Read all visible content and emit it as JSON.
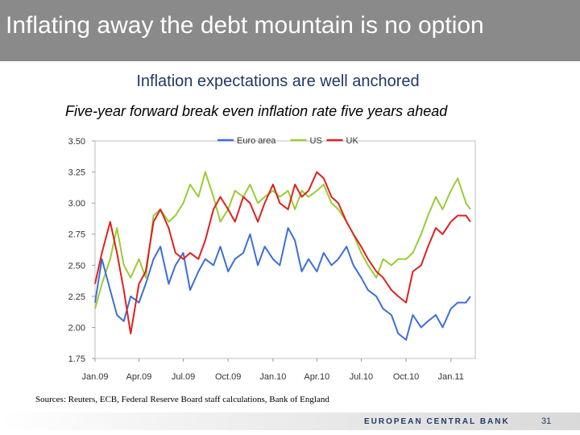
{
  "slide": {
    "title": "Inflating away the debt mountain is no option",
    "headline": "Inflation expectations are well anchored",
    "sources": "Sources:  Reuters, ECB, Federal Reserve Board staff calculations, Bank of England",
    "footer": "EUROPEAN CENTRAL BANK",
    "page_number": "31"
  },
  "chart_data": {
    "type": "line",
    "title": "Five-year forward break even inflation rate five years ahead",
    "xlabel": "",
    "ylabel": "",
    "x_start": "2009-01",
    "x_end": "2011-02",
    "x_ticks": [
      "Jan.09",
      "Apr.09",
      "Jul.09",
      "Oct.09",
      "Jan.10",
      "Apr.10",
      "Jul.10",
      "Oct.10",
      "Jan.11"
    ],
    "ylim": [
      1.75,
      3.5
    ],
    "y_ticks": [
      "1.75",
      "2.00",
      "2.25",
      "2.50",
      "2.75",
      "3.00",
      "3.25",
      "3.50"
    ],
    "grid": false,
    "legend_position": "top-center",
    "series": [
      {
        "name": "Euro area",
        "color": "#3c6fd8",
        "x": [
          "2009-01-01",
          "2009-01-15",
          "2009-02-01",
          "2009-02-15",
          "2009-03-01",
          "2009-03-15",
          "2009-04-01",
          "2009-04-15",
          "2009-05-01",
          "2009-05-15",
          "2009-06-01",
          "2009-06-15",
          "2009-07-01",
          "2009-07-15",
          "2009-08-01",
          "2009-08-15",
          "2009-09-01",
          "2009-09-15",
          "2009-10-01",
          "2009-10-15",
          "2009-11-01",
          "2009-11-15",
          "2009-12-01",
          "2009-12-15",
          "2010-01-01",
          "2010-01-15",
          "2010-02-01",
          "2010-02-15",
          "2010-03-01",
          "2010-03-15",
          "2010-04-01",
          "2010-04-15",
          "2010-05-01",
          "2010-05-15",
          "2010-06-01",
          "2010-06-15",
          "2010-07-01",
          "2010-07-15",
          "2010-08-01",
          "2010-08-15",
          "2010-09-01",
          "2010-09-15",
          "2010-10-01",
          "2010-10-15",
          "2010-11-01",
          "2010-11-15",
          "2010-12-01",
          "2010-12-15",
          "2011-01-01",
          "2011-01-15",
          "2011-02-01",
          "2011-02-10"
        ],
        "values": [
          2.2,
          2.55,
          2.3,
          2.1,
          2.05,
          2.25,
          2.2,
          2.35,
          2.55,
          2.65,
          2.35,
          2.5,
          2.6,
          2.3,
          2.45,
          2.55,
          2.5,
          2.65,
          2.45,
          2.55,
          2.6,
          2.75,
          2.5,
          2.65,
          2.55,
          2.5,
          2.8,
          2.7,
          2.45,
          2.55,
          2.45,
          2.6,
          2.5,
          2.55,
          2.65,
          2.5,
          2.4,
          2.3,
          2.25,
          2.15,
          2.1,
          1.95,
          1.9,
          2.1,
          2.0,
          2.05,
          2.1,
          2.0,
          2.15,
          2.2,
          2.2,
          2.25
        ]
      },
      {
        "name": "US",
        "color": "#9acd32",
        "x": [
          "2009-01-01",
          "2009-01-15",
          "2009-02-01",
          "2009-02-15",
          "2009-03-01",
          "2009-03-15",
          "2009-04-01",
          "2009-04-15",
          "2009-05-01",
          "2009-05-15",
          "2009-06-01",
          "2009-06-15",
          "2009-07-01",
          "2009-07-15",
          "2009-08-01",
          "2009-08-15",
          "2009-09-01",
          "2009-09-15",
          "2009-10-01",
          "2009-10-15",
          "2009-11-01",
          "2009-11-15",
          "2009-12-01",
          "2009-12-15",
          "2010-01-01",
          "2010-01-15",
          "2010-02-01",
          "2010-02-15",
          "2010-03-01",
          "2010-03-15",
          "2010-04-01",
          "2010-04-15",
          "2010-05-01",
          "2010-05-15",
          "2010-06-01",
          "2010-06-15",
          "2010-07-01",
          "2010-07-15",
          "2010-08-01",
          "2010-08-15",
          "2010-09-01",
          "2010-09-15",
          "2010-10-01",
          "2010-10-15",
          "2010-11-01",
          "2010-11-15",
          "2010-12-01",
          "2010-12-15",
          "2011-01-01",
          "2011-01-15",
          "2011-02-01",
          "2011-02-10"
        ],
        "values": [
          2.15,
          2.35,
          2.55,
          2.8,
          2.5,
          2.4,
          2.55,
          2.4,
          2.9,
          2.95,
          2.85,
          2.9,
          3.0,
          3.15,
          3.05,
          3.25,
          3.05,
          2.85,
          2.95,
          3.1,
          3.05,
          3.15,
          3.0,
          3.05,
          3.1,
          3.05,
          3.1,
          2.95,
          3.1,
          3.05,
          3.1,
          3.15,
          3.0,
          2.95,
          2.85,
          2.75,
          2.6,
          2.5,
          2.4,
          2.55,
          2.5,
          2.55,
          2.55,
          2.6,
          2.75,
          2.9,
          3.05,
          2.95,
          3.1,
          3.2,
          3.0,
          2.95
        ]
      },
      {
        "name": "UK",
        "color": "#e02020",
        "x": [
          "2009-01-01",
          "2009-01-15",
          "2009-02-01",
          "2009-02-15",
          "2009-03-01",
          "2009-03-15",
          "2009-04-01",
          "2009-04-15",
          "2009-05-01",
          "2009-05-15",
          "2009-06-01",
          "2009-06-15",
          "2009-07-01",
          "2009-07-15",
          "2009-08-01",
          "2009-08-15",
          "2009-09-01",
          "2009-09-15",
          "2009-10-01",
          "2009-10-15",
          "2009-11-01",
          "2009-11-15",
          "2009-12-01",
          "2009-12-15",
          "2010-01-01",
          "2010-01-15",
          "2010-02-01",
          "2010-02-15",
          "2010-03-01",
          "2010-03-15",
          "2010-04-01",
          "2010-04-15",
          "2010-05-01",
          "2010-05-15",
          "2010-06-01",
          "2010-06-15",
          "2010-07-01",
          "2010-07-15",
          "2010-08-01",
          "2010-08-15",
          "2010-09-01",
          "2010-09-15",
          "2010-10-01",
          "2010-10-15",
          "2010-11-01",
          "2010-11-15",
          "2010-12-01",
          "2010-12-15",
          "2011-01-01",
          "2011-01-15",
          "2011-02-01",
          "2011-02-10"
        ],
        "values": [
          2.35,
          2.6,
          2.85,
          2.6,
          2.3,
          1.95,
          2.35,
          2.45,
          2.85,
          2.95,
          2.8,
          2.6,
          2.55,
          2.6,
          2.55,
          2.7,
          2.95,
          3.05,
          2.95,
          2.85,
          3.05,
          3.0,
          2.85,
          3.0,
          3.15,
          3.0,
          2.95,
          3.15,
          3.05,
          3.1,
          3.25,
          3.2,
          3.05,
          3.0,
          2.85,
          2.75,
          2.65,
          2.55,
          2.45,
          2.4,
          2.3,
          2.25,
          2.2,
          2.45,
          2.5,
          2.65,
          2.8,
          2.75,
          2.85,
          2.9,
          2.9,
          2.85
        ]
      }
    ]
  }
}
